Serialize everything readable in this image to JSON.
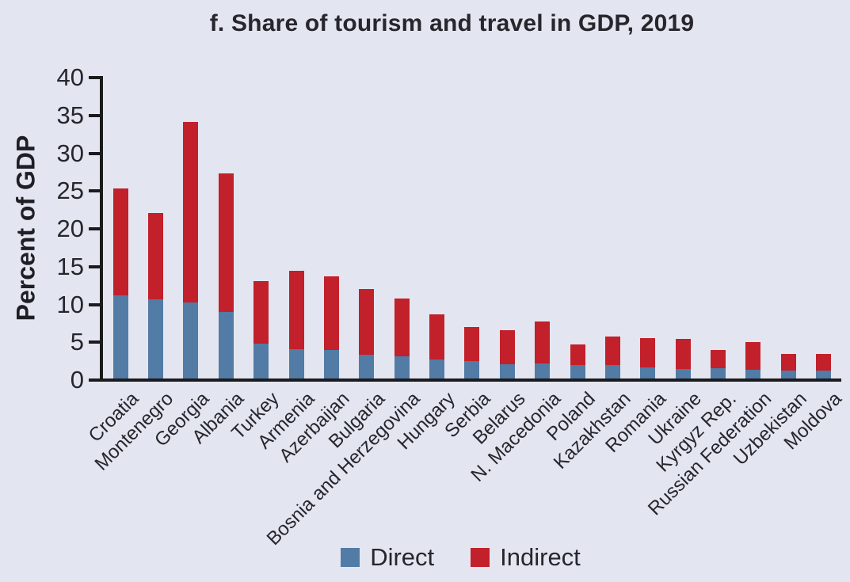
{
  "panel": {
    "background_color": "#e3e6f0",
    "axis_color": "#1b1b1d",
    "text_color": "#26262c"
  },
  "chart_data": {
    "type": "bar",
    "stacked": true,
    "title": "f. Share of tourism and travel in GDP, 2019",
    "ylabel": "Percent of GDP",
    "xlabel": "",
    "ylim": [
      0,
      40
    ],
    "y_ticks": [
      0,
      5,
      10,
      15,
      20,
      25,
      30,
      35,
      40
    ],
    "grid": false,
    "legend_position": "bottom",
    "categories": [
      "Croatia",
      "Montenegro",
      "Georgia",
      "Albania",
      "Turkey",
      "Armenia",
      "Azerbaijan",
      "Bulgaria",
      "Bosnia and Herzegovina",
      "Hungary",
      "Serbia",
      "Belarus",
      "N. Macedonia",
      "Poland",
      "Kazakhstan",
      "Romania",
      "Ukraine",
      "Kyrgyz Rep.",
      "Russian Federation",
      "Uzbekistan",
      "Moldova"
    ],
    "series": [
      {
        "name": "Direct",
        "color": "#527ba6",
        "values": [
          11.0,
          10.5,
          10.1,
          8.8,
          4.6,
          3.9,
          3.8,
          3.1,
          2.9,
          2.5,
          2.3,
          1.9,
          2.0,
          1.8,
          1.8,
          1.5,
          1.3,
          1.4,
          1.2,
          1.1,
          1.0
        ]
      },
      {
        "name": "Indirect",
        "color": "#c2202a",
        "values": [
          14.1,
          11.4,
          23.8,
          18.3,
          8.3,
          10.3,
          9.7,
          8.7,
          7.7,
          6.0,
          4.5,
          4.5,
          5.5,
          2.7,
          3.7,
          3.8,
          3.9,
          2.4,
          3.6,
          2.2,
          2.3
        ]
      }
    ]
  }
}
